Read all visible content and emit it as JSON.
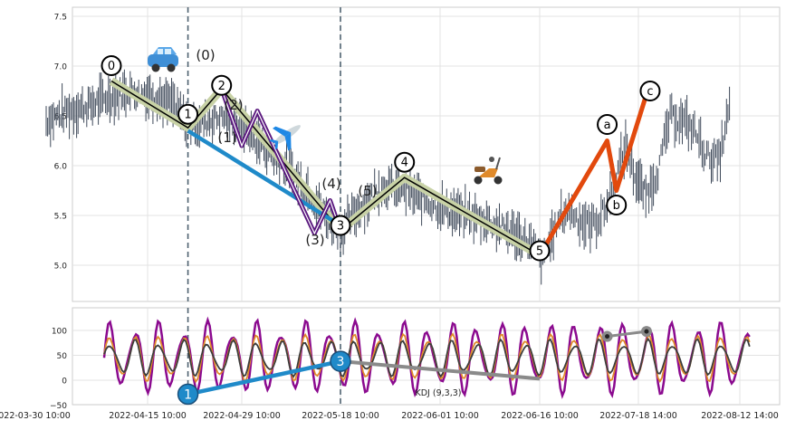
{
  "chart_data": [
    {
      "panel": "price",
      "type": "line",
      "x_unit": "datetime",
      "x_ticks": [
        "2022-03-30 10:00",
        "2022-04-15 10:00",
        "2022-04-29 10:00",
        "2022-05-18 10:00",
        "2022-06-01 10:00",
        "2022-06-16 10:00",
        "2022-07-18 14:00",
        "2022-08-12 14:00"
      ],
      "ylim": [
        4.6,
        7.6
      ],
      "y_ticks": [
        "5.0",
        "5.5",
        "6.0",
        "6.5",
        "7.0",
        "7.5"
      ],
      "grid": true,
      "vertical_markers": [
        "2022-04-21 10:00",
        "2022-05-18 10:00"
      ],
      "price_series": {
        "x": [
          "2022-04-01",
          "2022-04-04",
          "2022-04-07",
          "2022-04-10",
          "2022-04-13",
          "2022-04-16",
          "2022-04-19",
          "2022-04-21",
          "2022-04-24",
          "2022-04-27",
          "2022-04-30",
          "2022-05-03",
          "2022-05-06",
          "2022-05-09",
          "2022-05-12",
          "2022-05-15",
          "2022-05-18",
          "2022-05-21",
          "2022-05-24",
          "2022-05-27",
          "2022-05-30",
          "2022-06-02",
          "2022-06-05",
          "2022-06-08",
          "2022-06-11",
          "2022-06-14",
          "2022-06-17",
          "2022-06-20",
          "2022-06-23",
          "2022-06-26",
          "2022-06-29",
          "2022-07-02",
          "2022-07-05",
          "2022-07-08",
          "2022-07-11",
          "2022-07-14",
          "2022-07-17",
          "2022-07-20",
          "2022-07-23",
          "2022-07-26",
          "2022-07-29",
          "2022-08-01",
          "2022-08-04",
          "2022-08-07",
          "2022-08-10"
        ],
        "values": [
          6.45,
          6.55,
          6.6,
          6.7,
          6.75,
          6.7,
          6.6,
          6.4,
          6.45,
          6.5,
          6.35,
          6.2,
          6.05,
          5.9,
          5.75,
          5.5,
          5.35,
          5.6,
          5.8,
          5.75,
          5.65,
          5.55,
          5.5,
          5.45,
          5.35,
          5.25,
          5.05,
          5.3,
          5.5,
          5.55,
          5.45,
          5.4,
          5.45,
          5.6,
          5.9,
          6.2,
          5.9,
          5.7,
          5.95,
          6.5,
          6.45,
          6.35,
          6.1,
          6.05,
          6.65
        ]
      },
      "wave_labels": [
        {
          "label": "0",
          "x": "2022-04-10 10:00",
          "y": 6.85
        },
        {
          "label": "1",
          "x": "2022-04-21 10:00",
          "y": 6.38
        },
        {
          "label": "2",
          "x": "2022-04-26 10:00",
          "y": 6.77
        },
        {
          "label": "3",
          "x": "2022-05-18 10:00",
          "y": 5.3
        },
        {
          "label": "4",
          "x": "2022-05-27 10:00",
          "y": 5.88
        },
        {
          "label": "5",
          "x": "2022-06-16 10:00",
          "y": 5.1
        },
        {
          "label": "a",
          "x": "2022-07-08 10:00",
          "y": 6.25
        },
        {
          "label": "b",
          "x": "2022-07-11 10:00",
          "y": 5.75
        },
        {
          "label": "c",
          "x": "2022-07-20 14:00",
          "y": 6.75
        }
      ],
      "sub_wave_labels": [
        "(0)",
        "(1)",
        "(2)",
        "(3)",
        "(4)",
        "(5)"
      ],
      "impulse_path": [
        {
          "x": "2022-04-10 10:00",
          "y": 6.85
        },
        {
          "x": "2022-04-21 10:00",
          "y": 6.38
        },
        {
          "x": "2022-04-26 10:00",
          "y": 6.77
        },
        {
          "x": "2022-05-18 10:00",
          "y": 5.35
        },
        {
          "x": "2022-05-27 10:00",
          "y": 5.88
        },
        {
          "x": "2022-06-16 10:00",
          "y": 5.1
        }
      ],
      "sub_wave_path": [
        {
          "x": "2022-04-26 10:00",
          "y": 6.77
        },
        {
          "x": "2022-04-29 10:00",
          "y": 6.2
        },
        {
          "x": "2022-05-02 10:00",
          "y": 6.55
        },
        {
          "x": "2022-05-13 10:00",
          "y": 5.32
        },
        {
          "x": "2022-05-16 10:00",
          "y": 5.65
        },
        {
          "x": "2022-05-18 10:00",
          "y": 5.35
        }
      ],
      "correction_path": [
        {
          "x": "2022-06-16 10:00",
          "y": 5.1
        },
        {
          "x": "2022-07-08 10:00",
          "y": 6.25
        },
        {
          "x": "2022-07-11 10:00",
          "y": 5.75
        },
        {
          "x": "2022-07-20 14:00",
          "y": 6.72
        }
      ],
      "trend_line": [
        {
          "x": "2022-04-21 10:00",
          "y": 6.35
        },
        {
          "x": "2022-05-18 10:00",
          "y": 5.4
        }
      ],
      "stickers": [
        "car-sticker",
        "plane-sticker",
        "scooter-sticker"
      ],
      "colors": {
        "candles": "#3f4a5a",
        "impulse_glow": "#c8d2a6",
        "impulse": "#000000",
        "sub_wave": "#5b197f",
        "correction": "#e2490d",
        "trend_line": "#1f8ac9",
        "marker": "#4e6270"
      }
    },
    {
      "panel": "indicator",
      "type": "line",
      "title": "KDJ (9,3,3)",
      "ylim": [
        -50,
        140
      ],
      "y_ticks": [
        "−50",
        "0",
        "50",
        "100"
      ],
      "grid": true,
      "series": [
        {
          "key": "J",
          "color": "#8b0a8f"
        },
        {
          "key": "K",
          "color": "#e08a2a"
        },
        {
          "key": "D",
          "color": "#3d3d3d"
        }
      ],
      "divergence_line": {
        "points": [
          {
            "x": "2022-04-21 10:00",
            "y": -28,
            "label": "1"
          },
          {
            "x": "2022-05-18 10:00",
            "y": 38,
            "label": "3"
          }
        ],
        "color": "#1f8ac9"
      },
      "extension_line": {
        "points": [
          {
            "x": "2022-05-18 10:00",
            "y": 38
          },
          {
            "x": "2022-06-16 10:00",
            "y": 3
          }
        ],
        "color": "#8a8a8a"
      },
      "secondary_line": {
        "points": [
          {
            "x": "2022-07-08 10:00",
            "y": 88
          },
          {
            "x": "2022-07-20 14:00",
            "y": 98
          }
        ],
        "color": "#8a8a8a"
      }
    }
  ]
}
